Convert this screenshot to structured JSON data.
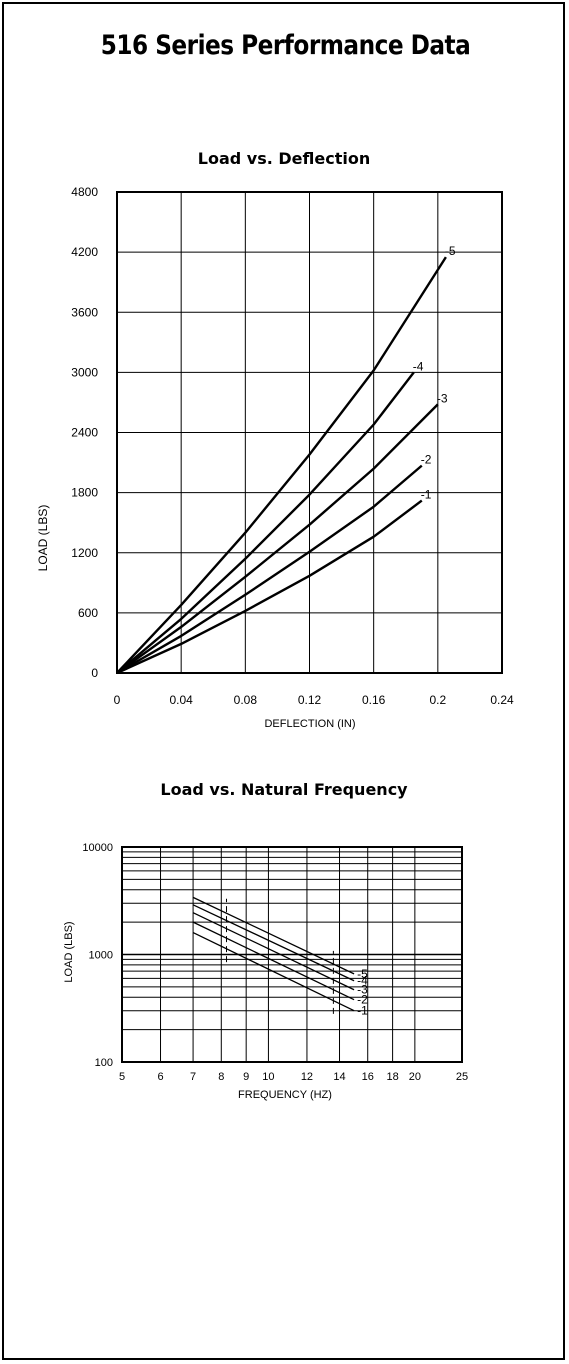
{
  "page": {
    "title": "516 Series Performance Data"
  },
  "chart_data": [
    {
      "type": "line",
      "title": "Load vs. Deflection",
      "xlabel": "DEFLECTION (IN)",
      "ylabel": "LOAD (LBS)",
      "xlim": [
        0,
        0.24
      ],
      "ylim": [
        0,
        4800
      ],
      "x_ticks": [
        "0",
        "0.04",
        "0.08",
        "0.12",
        "0.16",
        "0.2",
        "0.24"
      ],
      "y_ticks": [
        "0",
        "600",
        "1200",
        "1800",
        "2400",
        "3000",
        "3600",
        "4200",
        "4800"
      ],
      "grid": true,
      "series": [
        {
          "name": "-1",
          "x": [
            0,
            0.04,
            0.08,
            0.12,
            0.16,
            0.19
          ],
          "y": [
            0,
            290,
            620,
            970,
            1360,
            1720
          ]
        },
        {
          "name": "-2",
          "x": [
            0,
            0.04,
            0.08,
            0.12,
            0.16,
            0.19
          ],
          "y": [
            0,
            370,
            780,
            1210,
            1660,
            2070
          ]
        },
        {
          "name": "-3",
          "x": [
            0,
            0.04,
            0.08,
            0.12,
            0.16,
            0.2
          ],
          "y": [
            0,
            460,
            960,
            1480,
            2040,
            2680
          ]
        },
        {
          "name": "-4",
          "x": [
            0,
            0.04,
            0.08,
            0.12,
            0.16,
            0.185
          ],
          "y": [
            0,
            540,
            1140,
            1780,
            2480,
            3000
          ]
        },
        {
          "name": "-5",
          "x": [
            0,
            0.04,
            0.08,
            0.12,
            0.16,
            0.205
          ],
          "y": [
            0,
            680,
            1400,
            2180,
            3020,
            4150
          ]
        }
      ]
    },
    {
      "type": "line",
      "title": "Load vs. Natural Frequency",
      "xlabel": "FREQUENCY (HZ)",
      "ylabel": "LOAD (LBS)",
      "x_scale": "log",
      "y_scale": "log",
      "xlim": [
        5,
        25
      ],
      "ylim": [
        100,
        10000
      ],
      "x_ticks": [
        "5",
        "6",
        "7",
        "8",
        "9",
        "10",
        "12",
        "14",
        "16",
        "18",
        "20",
        "25"
      ],
      "y_ticks": [
        "100",
        "1000",
        "10000"
      ],
      "grid": true,
      "series": [
        {
          "name": "-5",
          "x": [
            7,
            15
          ],
          "y": [
            3400,
            660
          ]
        },
        {
          "name": "-4",
          "x": [
            7,
            15
          ],
          "y": [
            2900,
            570
          ]
        },
        {
          "name": "-3",
          "x": [
            7,
            15
          ],
          "y": [
            2450,
            470
          ]
        },
        {
          "name": "-2",
          "x": [
            7,
            15
          ],
          "y": [
            2000,
            380
          ]
        },
        {
          "name": "-1",
          "x": [
            7,
            15
          ],
          "y": [
            1600,
            300
          ]
        }
      ],
      "limit_lines": [
        {
          "x": 8.2,
          "y": [
            850,
            3300
          ]
        },
        {
          "x": 13.6,
          "y": [
            280,
            1080
          ]
        }
      ]
    }
  ]
}
